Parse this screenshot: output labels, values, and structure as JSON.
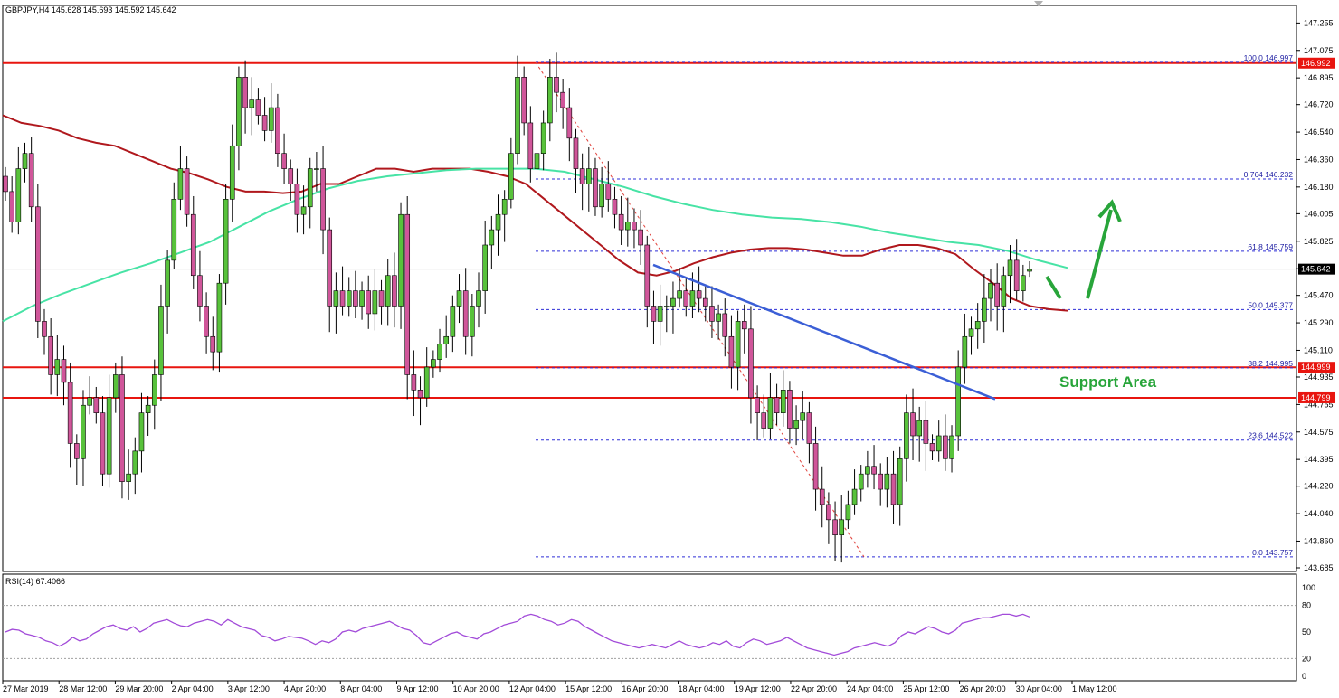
{
  "header": {
    "symbol_line": "GBPJPY,H4  145.628 145.693 145.592 145.642"
  },
  "colors": {
    "bull": "#58c23b",
    "bear": "#d0569a",
    "resistance": "#e8150f",
    "fib": "#2e2ed8",
    "fib_diag": "#e0403a",
    "ma_red": "#b0181d",
    "ma_green": "#47e3a5",
    "trend_blue": "#3b5fd6",
    "arrow": "#28a53a",
    "rsi": "#a24bd9",
    "current_price_box": "#000000"
  },
  "chart_data": [
    {
      "type": "candlestick",
      "symbol": "GBPJPY",
      "timeframe": "H4",
      "ohlc_current": {
        "open": 145.628,
        "high": 145.693,
        "low": 145.592,
        "close": 145.642
      },
      "ylim": [
        143.685,
        147.275
      ],
      "y_ticks": [
        "147.255",
        "147.075",
        "146.895",
        "146.720",
        "146.540",
        "146.360",
        "146.180",
        "146.005",
        "145.825",
        "145.645",
        "145.470",
        "145.290",
        "145.110",
        "144.935",
        "144.755",
        "144.575",
        "144.395",
        "144.220",
        "144.040",
        "143.860",
        "143.685"
      ],
      "x_labels": [
        "27 Mar 2019",
        "28 Mar 12:00",
        "29 Mar 20:00",
        "2 Apr 04:00",
        "3 Apr 12:00",
        "4 Apr 20:00",
        "8 Apr 04:00",
        "9 Apr 12:00",
        "10 Apr 20:00",
        "12 Apr 04:00",
        "15 Apr 12:00",
        "16 Apr 20:00",
        "18 Apr 04:00",
        "19 Apr 12:00",
        "22 Apr 20:00",
        "24 Apr 04:00",
        "25 Apr 12:00",
        "26 Apr 20:00",
        "30 Apr 04:00",
        "1 May 12:00"
      ],
      "horizontal_levels": [
        {
          "price": 146.992,
          "label": "146.992"
        },
        {
          "price": 144.999,
          "label": "144.999"
        },
        {
          "price": 144.799,
          "label": "144.799"
        }
      ],
      "current_price_label": "145.642",
      "fibonacci": [
        {
          "ratio": "100.0",
          "price": 146.997,
          "label": "100.0 146.997"
        },
        {
          "ratio": "0.764",
          "price": 146.232,
          "label": "0.764 146.232"
        },
        {
          "ratio": "61.8",
          "price": 145.759,
          "label": "61.8 145.759"
        },
        {
          "ratio": "50.0",
          "price": 145.377,
          "label": "50.0 145.377"
        },
        {
          "ratio": "38.2",
          "price": 144.995,
          "label": "38.2 144.995"
        },
        {
          "ratio": "23.6",
          "price": 144.522,
          "label": "23.6 144.522"
        },
        {
          "ratio": "0.0",
          "price": 143.757,
          "label": "0.0 143.757"
        }
      ],
      "annotations": [
        {
          "text": "Support Area",
          "color": "#28a53a"
        }
      ],
      "closes": [
        146.15,
        145.95,
        146.3,
        146.4,
        146.05,
        145.3,
        145.2,
        144.95,
        145.05,
        144.9,
        144.5,
        144.4,
        144.75,
        144.8,
        144.7,
        144.3,
        144.8,
        144.95,
        144.25,
        144.3,
        144.45,
        144.7,
        144.75,
        144.95,
        145.4,
        145.7,
        146.1,
        146.3,
        146.0,
        145.6,
        145.4,
        145.2,
        145.1,
        145.55,
        146.1,
        146.45,
        146.9,
        146.7,
        146.75,
        146.65,
        146.55,
        146.7,
        146.4,
        146.3,
        146.2,
        146.0,
        146.05,
        146.3,
        146.3,
        145.9,
        145.4,
        145.5,
        145.4,
        145.5,
        145.4,
        145.5,
        145.35,
        145.5,
        145.4,
        145.6,
        145.4,
        146.0,
        144.95,
        144.85,
        144.8,
        145.0,
        145.05,
        145.15,
        145.2,
        145.4,
        145.5,
        145.2,
        145.4,
        145.5,
        145.8,
        145.9,
        146.0,
        146.1,
        146.4,
        146.9,
        146.6,
        146.3,
        146.4,
        146.6,
        146.9,
        146.8,
        146.7,
        146.5,
        146.3,
        146.2,
        146.3,
        146.05,
        146.2,
        146.1,
        146.0,
        145.9,
        145.95,
        145.9,
        145.8,
        145.4,
        145.3,
        145.4,
        145.4,
        145.45,
        145.5,
        145.4,
        145.5,
        145.45,
        145.4,
        145.3,
        145.35,
        145.2,
        145.0,
        145.3,
        145.25,
        144.8,
        144.7,
        144.6,
        144.8,
        144.7,
        144.85,
        144.6,
        144.65,
        144.7,
        144.5,
        144.2,
        144.1,
        144.0,
        143.9,
        144.0,
        144.1,
        144.2,
        144.3,
        144.35,
        144.3,
        144.2,
        144.3,
        144.1,
        144.4,
        144.7,
        144.55,
        144.65,
        144.5,
        144.45,
        144.55,
        144.4,
        144.55,
        145.0,
        145.2,
        145.25,
        145.3,
        145.45,
        145.55,
        145.4,
        145.6,
        145.7,
        145.5,
        145.6,
        145.64
      ],
      "ma_red_values": [
        146.65,
        146.6,
        146.58,
        146.55,
        146.5,
        146.47,
        146.45,
        146.4,
        146.35,
        146.3,
        146.27,
        146.23,
        146.18,
        146.15,
        146.15,
        146.14,
        146.15,
        146.2,
        146.2,
        146.25,
        146.3,
        146.3,
        146.28,
        146.3,
        146.3,
        146.3,
        146.28,
        146.25,
        146.2,
        146.1,
        146.0,
        145.9,
        145.8,
        145.7,
        145.62,
        145.6,
        145.63,
        145.68,
        145.72,
        145.75,
        145.77,
        145.78,
        145.78,
        145.77,
        145.75,
        145.73,
        145.73,
        145.77,
        145.8,
        145.8,
        145.78,
        145.74,
        145.64,
        145.55,
        145.45,
        145.4,
        145.38,
        145.37
      ],
      "ma_green_values": [
        145.3,
        145.4,
        145.48,
        145.55,
        145.62,
        145.68,
        145.75,
        145.82,
        145.92,
        146.02,
        146.1,
        146.17,
        146.22,
        146.25,
        146.27,
        146.29,
        146.3,
        146.3,
        146.3,
        146.28,
        146.23,
        146.18,
        146.12,
        146.07,
        146.03,
        146.0,
        145.98,
        145.97,
        145.95,
        145.92,
        145.88,
        145.85,
        145.82,
        145.8,
        145.76,
        145.7,
        145.65
      ],
      "rsi": {
        "label": "RSI(14) 67.4066",
        "period": 14,
        "current": 67.4066,
        "ylim": [
          0,
          100
        ],
        "ticks": [
          "100",
          "80",
          "50",
          "20",
          "0"
        ],
        "levels": [
          80,
          20
        ],
        "values": [
          50,
          53,
          52,
          48,
          46,
          44,
          40,
          38,
          34,
          38,
          44,
          40,
          42,
          48,
          52,
          56,
          58,
          54,
          52,
          56,
          50,
          54,
          60,
          62,
          64,
          60,
          57,
          56,
          60,
          62,
          64,
          62,
          58,
          64,
          60,
          56,
          54,
          52,
          46,
          44,
          40,
          42,
          45,
          44,
          43,
          40,
          36,
          40,
          38,
          42,
          50,
          52,
          50,
          54,
          56,
          58,
          60,
          62,
          58,
          54,
          52,
          46,
          38,
          36,
          40,
          44,
          48,
          50,
          46,
          44,
          42,
          48,
          50,
          54,
          58,
          60,
          62,
          68,
          70,
          68,
          64,
          62,
          58,
          60,
          64,
          62,
          56,
          52,
          48,
          44,
          40,
          38,
          36,
          34,
          32,
          34,
          36,
          34,
          32,
          36,
          40,
          36,
          34,
          32,
          34,
          38,
          36,
          40,
          34,
          32,
          38,
          42,
          40,
          36,
          38,
          40,
          44,
          40,
          36,
          32,
          30,
          28,
          26,
          24,
          26,
          28,
          32,
          34,
          36,
          38,
          36,
          34,
          38,
          46,
          50,
          48,
          52,
          56,
          54,
          50,
          48,
          52,
          60,
          62,
          64,
          66,
          66,
          68,
          70,
          70,
          68,
          70,
          67
        ]
      }
    }
  ]
}
